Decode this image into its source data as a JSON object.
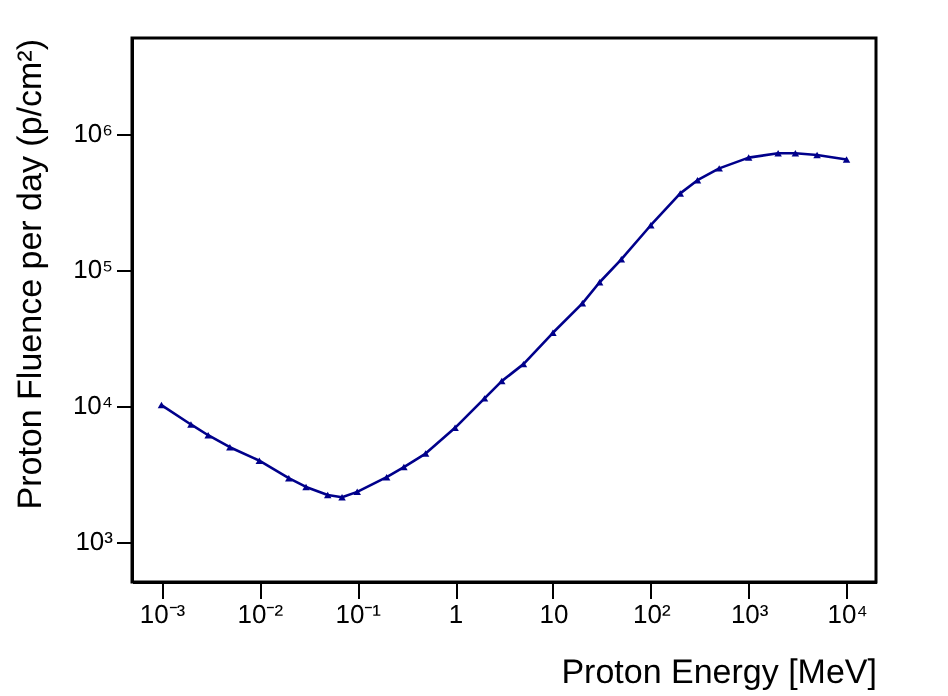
{
  "chart_data": {
    "type": "line",
    "xlabel": "Proton Energy [MeV]",
    "ylabel": "Proton Fluence per day (p/cm²)",
    "log": "xy",
    "marker": "triangle",
    "line_style": "solid",
    "xlim": [
      0.0005,
      20000
    ],
    "ylim": [
      500,
      5000000
    ],
    "xticks": [
      {
        "value": 0.001,
        "label": "10⁻³"
      },
      {
        "value": 0.01,
        "label": "10⁻²"
      },
      {
        "value": 0.1,
        "label": "10⁻¹"
      },
      1,
      10,
      {
        "value": 100,
        "label": "10²"
      },
      {
        "value": 1000,
        "label": "10³"
      },
      {
        "value": 10000,
        "label": "10⁴"
      }
    ],
    "yticks": [
      {
        "value": 1000,
        "label": "10³"
      },
      {
        "value": 10000,
        "label": "10⁴"
      },
      {
        "value": 100000,
        "label": "10⁵"
      },
      {
        "value": 1000000,
        "label": "10⁶"
      }
    ],
    "series": [
      {
        "color": "#00008b",
        "x": [
          0.001,
          0.002,
          0.003,
          0.005,
          0.01,
          0.02,
          0.03,
          0.05,
          0.07,
          0.1,
          0.2,
          0.3,
          0.5,
          1,
          2,
          3,
          5,
          10,
          20,
          30,
          50,
          100,
          200,
          300,
          500,
          1000,
          2000,
          3000,
          5000,
          10000
        ],
        "values": [
          10000,
          7200,
          6000,
          4900,
          3900,
          2900,
          2500,
          2180,
          2100,
          2300,
          2950,
          3500,
          4400,
          6800,
          11200,
          15000,
          20000,
          34000,
          56000,
          80000,
          118000,
          210000,
          360000,
          450000,
          550000,
          660000,
          710000,
          710000,
          690000,
          640000
        ]
      }
    ]
  }
}
